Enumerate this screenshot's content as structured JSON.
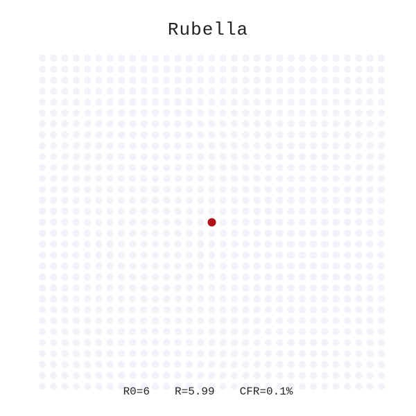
{
  "title": "Rubella",
  "stats": {
    "r0": "R0=6",
    "r": "R=5.99",
    "cfr": "CFR=0.1%"
  },
  "grid": {
    "columns": 31,
    "rows": 31,
    "infected": [
      [
        15,
        15
      ]
    ],
    "colors": {
      "susceptible": "#f2f2fa",
      "infected": "#b01018"
    }
  }
}
